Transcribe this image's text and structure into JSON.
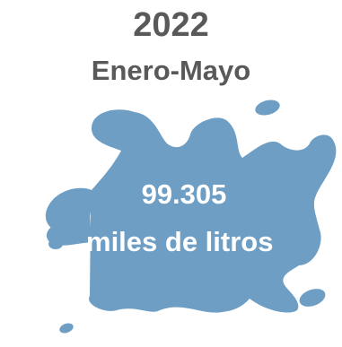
{
  "header": {
    "year": "2022",
    "period": "Enero-Mayo"
  },
  "splash": {
    "value": "99.305",
    "unit": "miles de litros",
    "color": "#6e9ec4",
    "icon": "water-splash-icon"
  },
  "colors": {
    "heading": "#595959",
    "splash_text": "#ffffff"
  }
}
